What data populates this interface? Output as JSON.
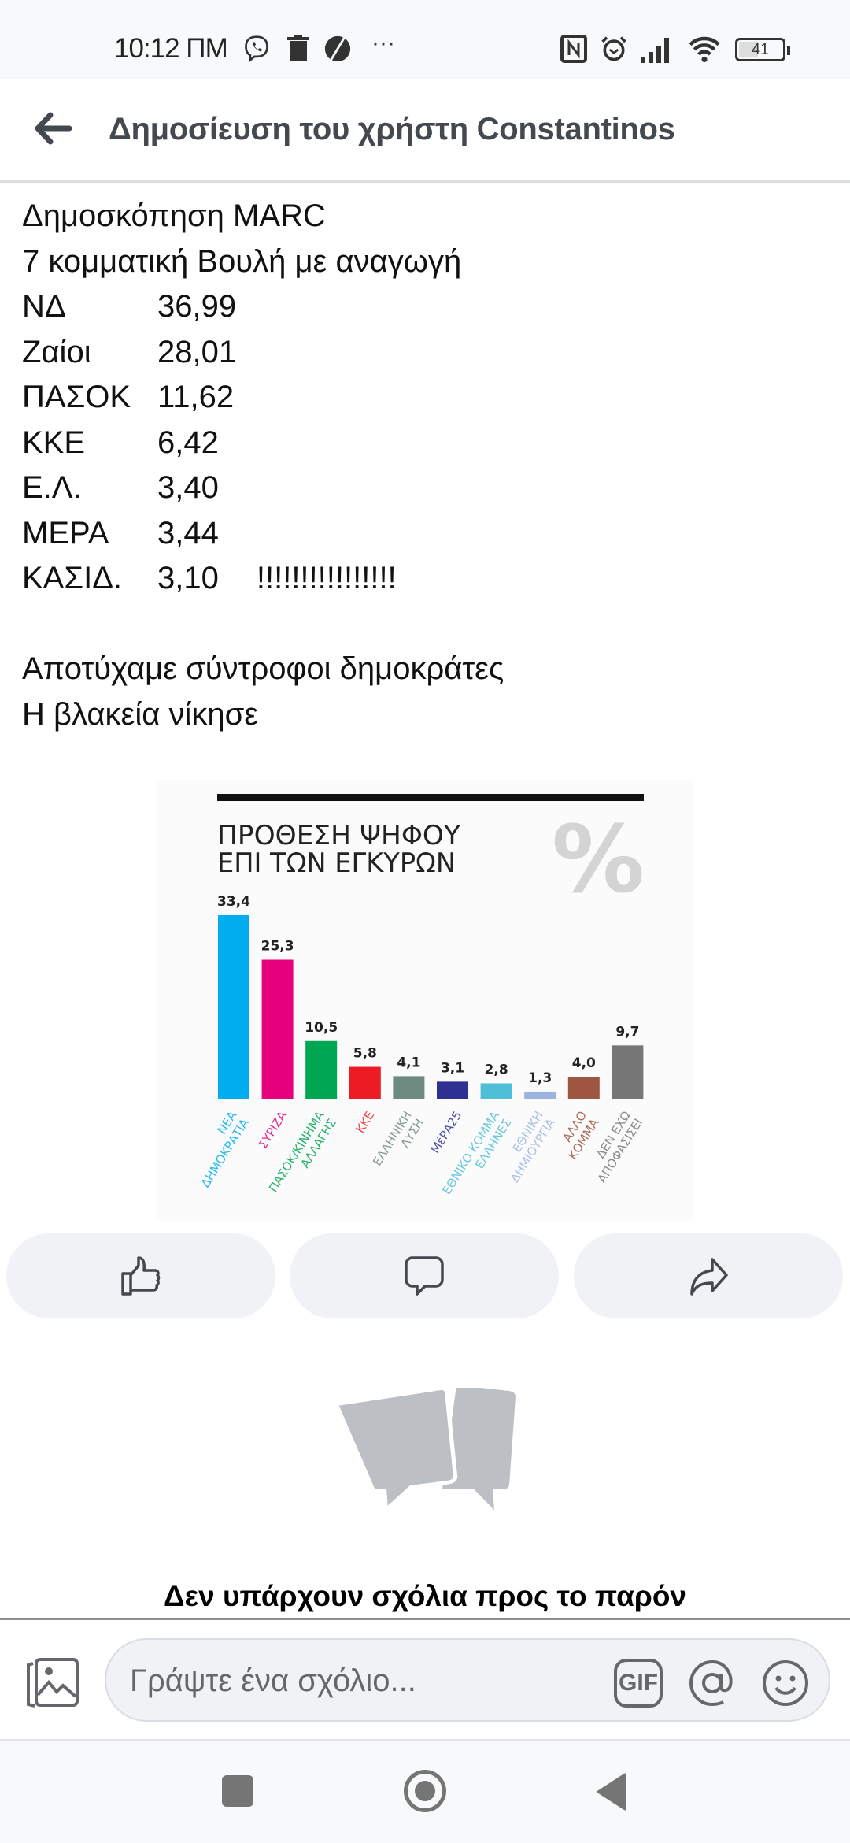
{
  "status_bar": {
    "time": "10:12 ΠΜ",
    "battery": "41"
  },
  "header": {
    "title": "Δημοσίευση του χρήστη Constantinos"
  },
  "post": {
    "line1": "Δημοσκόπηση MARC",
    "line2": "7 κομματική Βουλή με αναγωγή",
    "results": [
      {
        "party": "ΝΔ",
        "value": "36,99"
      },
      {
        "party": "Ζαίοι",
        "value": "28,01"
      },
      {
        "party": "ΠΑΣΟΚ",
        "value": "11,62"
      },
      {
        "party": "ΚΚΕ",
        "value": "6,42"
      },
      {
        "party": "Ε.Λ.",
        "value": "3,40"
      },
      {
        "party": "ΜΕΡΑ",
        "value": "3,44"
      },
      {
        "party": "ΚΑΣΙΔ.",
        "value": "3,10",
        "note": "!!!!!!!!!!!!!!!!"
      }
    ],
    "line_after1": "Αποτύχαμε σύντροφοι δημοκράτες",
    "line_after2": "Η βλακεία νίκησε"
  },
  "chart_data": {
    "type": "bar",
    "title": [
      "ΠΡΟΘΕΣΗ ΨΗΦΟΥ",
      "ΕΠΙ ΤΩΝ ΕΓΚΥΡΩΝ"
    ],
    "unit_mark": "%",
    "categories": [
      [
        "ΝΕΑ",
        "ΔΗΜΟΚΡΑΤΙΑ"
      ],
      [
        "ΣΥΡΙΖΑ"
      ],
      [
        "ΠΑΣΟΚ/ΚΙΝΗΜΑ",
        "ΑΛΛΑΓΗΣ"
      ],
      [
        "ΚΚΕ"
      ],
      [
        "ΕΛΛΗΝΙΚΗ",
        "ΛΥΣΗ"
      ],
      [
        "ΜέΡΑ25"
      ],
      [
        "ΕΘΝΙΚΟ ΚΟΜΜΑ",
        "ΕΛΛΗΝΕΣ"
      ],
      [
        "ΕΘΝΙΚΗ",
        "ΔΗΜΙΟΥΡΓΙΑ"
      ],
      [
        "ΑΛΛΟ",
        "ΚΟΜΜΑ"
      ],
      [
        "ΔΕΝ ΕΧΩ",
        "ΑΠΟΦΑΣΙΣΕΙ"
      ]
    ],
    "values": [
      33.4,
      25.3,
      10.5,
      5.8,
      4.1,
      3.1,
      2.8,
      1.3,
      4.0,
      9.7
    ],
    "value_labels": [
      "33,4",
      "25,3",
      "10,5",
      "5,8",
      "4,1",
      "3,1",
      "2,8",
      "1,3",
      "4,0",
      "9,7"
    ],
    "colors": [
      "#00aeef",
      "#e6007e",
      "#00a651",
      "#ed1c24",
      "#6f8a80",
      "#2e3192",
      "#4fbfd8",
      "#9db4de",
      "#9c5641",
      "#777777"
    ],
    "ylim": [
      0,
      35
    ],
    "grid": false,
    "legend": "none"
  },
  "actions": {
    "like": "thumbs-up-icon",
    "comment": "comment-icon",
    "share": "share-icon"
  },
  "comments": {
    "empty_text": "Δεν υπάρχουν σχόλια προς το παρόν",
    "placeholder": "Γράψτε ένα σχόλιο...",
    "gif_label": "GIF"
  }
}
